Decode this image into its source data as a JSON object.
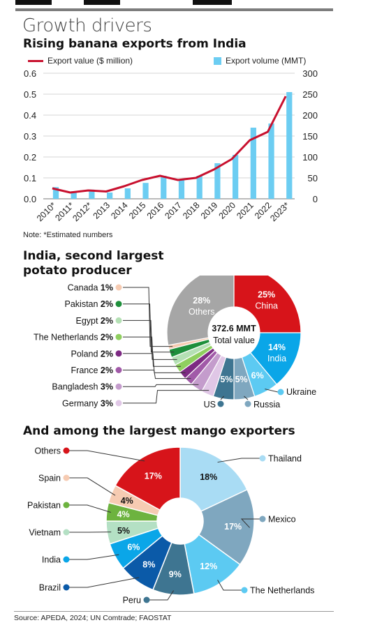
{
  "header": {
    "title": "Growth drivers"
  },
  "footer": {
    "source": "Source: APEDA, 2024; UN Comtrade; FAOSTAT"
  },
  "chart_data": [
    {
      "type": "bar+line",
      "title": "Rising banana exports from India",
      "note": "Note: *Estimated numbers",
      "categories": [
        "2010*",
        "2011*",
        "2012*",
        "2013",
        "2014",
        "2015",
        "2016",
        "2017",
        "2018",
        "2019",
        "2020",
        "2021",
        "2022",
        "2023*"
      ],
      "series": [
        {
          "name": "Export value ($ million)",
          "type": "line",
          "axis": "left",
          "color": "#c8102e",
          "values": [
            0.05,
            0.03,
            0.04,
            0.035,
            0.06,
            0.09,
            0.11,
            0.09,
            0.1,
            0.14,
            0.19,
            0.28,
            0.32,
            0.49
          ]
        },
        {
          "name": "Export volume (MMT)",
          "type": "bar",
          "axis": "right",
          "color": "#6ccdf2",
          "values": [
            28,
            18,
            22,
            15,
            25,
            38,
            55,
            45,
            55,
            85,
            105,
            170,
            180,
            255
          ]
        }
      ],
      "left_axis": {
        "ylim": [
          0,
          0.6
        ],
        "ticks": [
          "0.0",
          "0.1",
          "0.2",
          "0.3",
          "0.4",
          "0.5",
          "0.6"
        ]
      },
      "right_axis": {
        "ylim": [
          0,
          300
        ],
        "ticks": [
          "0",
          "50",
          "100",
          "150",
          "200",
          "250",
          "300"
        ]
      },
      "grid": true
    },
    {
      "type": "pie",
      "title": "India, second largest potato producer",
      "title_lines": [
        "India, second largest",
        "potato producer"
      ],
      "center_value": "372.6 MMT",
      "center_label": "Total value",
      "slices": [
        {
          "label": "China",
          "pct": "25%",
          "value": 25,
          "color": "#d7141a"
        },
        {
          "label": "India",
          "pct": "14%",
          "value": 14,
          "color": "#0aa6e8"
        },
        {
          "label": "Ukraine",
          "pct": "6%",
          "value": 6,
          "color": "#5ccaf2"
        },
        {
          "label": "Russia",
          "pct": "5%",
          "value": 5,
          "color": "#7fa7bf"
        },
        {
          "label": "US",
          "pct": "5%",
          "value": 5,
          "color": "#3e7591"
        },
        {
          "label": "Germany",
          "pct": "3%",
          "value": 3,
          "color": "#e0c7e6"
        },
        {
          "label": "Bangladesh",
          "pct": "3%",
          "value": 3,
          "color": "#c49ccc"
        },
        {
          "label": "France",
          "pct": "2%",
          "value": 2,
          "color": "#a15aa8"
        },
        {
          "label": "Poland",
          "pct": "2%",
          "value": 2,
          "color": "#7d2a83"
        },
        {
          "label": "The Netherlands",
          "pct": "2%",
          "value": 2,
          "color": "#8fcf5f"
        },
        {
          "label": "Egypt",
          "pct": "2%",
          "value": 2,
          "color": "#b4e0b4"
        },
        {
          "label": "Pakistan",
          "pct": "2%",
          "value": 2,
          "color": "#1e8f3b"
        },
        {
          "label": "Canada",
          "pct": "1%",
          "value": 1,
          "color": "#f6cbb2"
        },
        {
          "label": "Others",
          "pct": "28%",
          "value": 28,
          "color": "#a6a6a6"
        }
      ]
    },
    {
      "type": "pie",
      "title": "And among the largest mango exporters",
      "slices": [
        {
          "label": "Thailand",
          "pct": "18%",
          "value": 18,
          "color": "#a9dcf4"
        },
        {
          "label": "Mexico",
          "pct": "17%",
          "value": 17,
          "color": "#7fa7bf"
        },
        {
          "label": "The Netherlands",
          "pct": "12%",
          "value": 12,
          "color": "#5ccaf2"
        },
        {
          "label": "Peru",
          "pct": "9%",
          "value": 9,
          "color": "#3e7591"
        },
        {
          "label": "Brazil",
          "pct": "8%",
          "value": 8,
          "color": "#0b5aa8"
        },
        {
          "label": "India",
          "pct": "6%",
          "value": 6,
          "color": "#0aa6e8"
        },
        {
          "label": "Vietnam",
          "pct": "5%",
          "value": 5,
          "color": "#b4e0c4"
        },
        {
          "label": "Pakistan",
          "pct": "4%",
          "value": 4,
          "color": "#6db33f"
        },
        {
          "label": "Spain",
          "pct": "4%",
          "value": 4,
          "color": "#f6cbb2"
        },
        {
          "label": "Others",
          "pct": "17%",
          "value": 17,
          "color": "#d7141a"
        }
      ]
    }
  ]
}
